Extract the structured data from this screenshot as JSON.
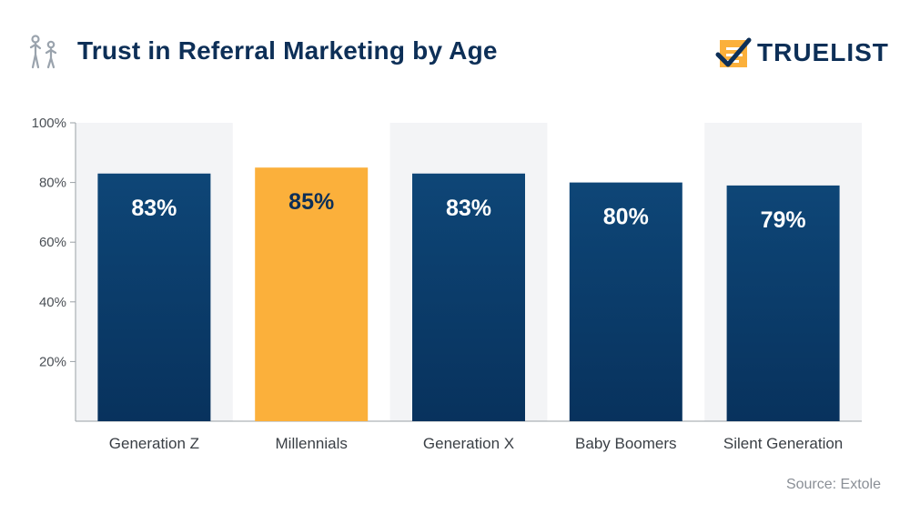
{
  "header": {
    "title": "Trust in Referral Marketing by Age",
    "brand": "TRUELIST",
    "title_icon": "people-icon",
    "brand_icon": "checklist-icon"
  },
  "footer": {
    "source": "Source: Extole"
  },
  "colors": {
    "bar": "#0d3a66",
    "highlight": "#fbb03b",
    "band": "#f3f4f6",
    "text_dark": "#0d2f57"
  },
  "chart_data": {
    "type": "bar",
    "title": "Trust in Referral Marketing by Age",
    "categories": [
      "Generation Z",
      "Millennials",
      "Generation X",
      "Baby Boomers",
      "Silent Generation"
    ],
    "values": [
      83,
      85,
      83,
      80,
      79
    ],
    "value_labels": [
      "83%",
      "85%",
      "83%",
      "80%",
      "79%"
    ],
    "highlight_index": 1,
    "ylim": [
      0,
      100
    ],
    "yticks": [
      20,
      40,
      60,
      80,
      100
    ],
    "ytick_labels": [
      "20%",
      "40%",
      "60%",
      "80%",
      "100%"
    ],
    "xlabel": "",
    "ylabel": "",
    "grid": false,
    "alternating_bands": true
  }
}
